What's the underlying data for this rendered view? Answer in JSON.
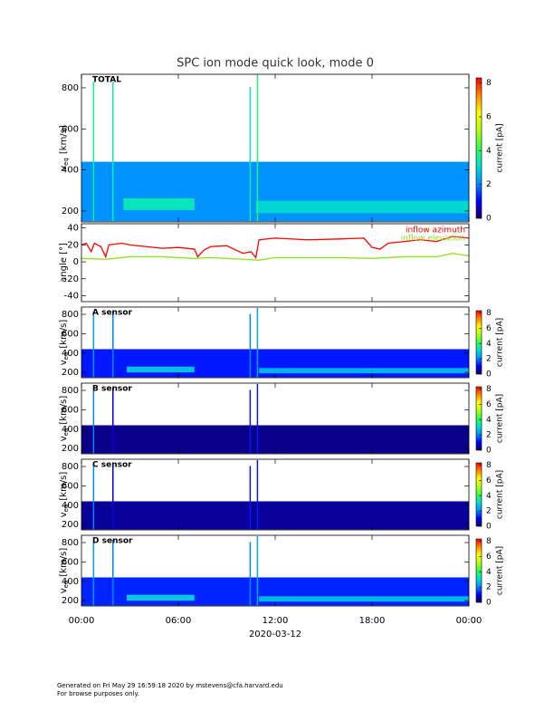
{
  "title": "SPC ion mode quick look, mode 0",
  "xlabel": "2020-03-12",
  "xlim": [
    0,
    24
  ],
  "xticks": [
    {
      "value": 0,
      "label": "00:00"
    },
    {
      "value": 6,
      "label": "06:00"
    },
    {
      "value": 12,
      "label": "12:00"
    },
    {
      "value": 18,
      "label": "18:00"
    },
    {
      "value": 24,
      "label": "00:00"
    }
  ],
  "footer": [
    "Generated on Fri May 29 16:59:18 2020 by mstevens@cfa.harvard.edu",
    "For browse purposes only."
  ],
  "chart_data": [
    {
      "type": "spectrogram",
      "label": "TOTAL",
      "ylabel": {
        "main": "v",
        "sub": "eq",
        "rest": "[km/s]"
      },
      "ylim": [
        147,
        866
      ],
      "yticks": [
        200,
        400,
        600,
        800
      ],
      "clim": [
        0,
        8.3
      ],
      "cticks": [
        0,
        2,
        4,
        6,
        8
      ],
      "clabel": "current [pA]",
      "colormap": [
        "#10005a",
        "#0000ff",
        "#0090ff",
        "#00e0d0",
        "#30ff50",
        "#b0ff10",
        "#ffff00",
        "#ff8800",
        "#ff0000"
      ],
      "background": {
        "v": [
          150,
          440
        ],
        "current": 2.1
      },
      "beams": [
        {
          "t": [
            2.6,
            7.0
          ],
          "v": [
            205,
            262
          ],
          "current": 3.3
        },
        {
          "t": [
            10.8,
            24
          ],
          "v": [
            190,
            250
          ],
          "current": 3.0
        }
      ],
      "spikes": [
        {
          "t": 0.75,
          "vmax": 830,
          "current": 3.6
        },
        {
          "t": 1.95,
          "vmax": 830,
          "current": 3.4
        },
        {
          "t": 10.45,
          "vmax": 805,
          "current": 3.4
        },
        {
          "t": 10.9,
          "vmax": 866,
          "current": 3.8
        }
      ]
    },
    {
      "type": "line",
      "ylabel": "angle [°]",
      "ylim": [
        -47,
        45
      ],
      "yticks": [
        -40,
        -20,
        0,
        20,
        40
      ],
      "series": [
        {
          "name": "inflow azimuth",
          "color": "#ff0000",
          "x": [
            0,
            0.3,
            0.6,
            0.8,
            1.2,
            1.5,
            1.7,
            2.5,
            3,
            4,
            5,
            6,
            7,
            7.2,
            7.6,
            8,
            9,
            10,
            10.5,
            10.8,
            11,
            12,
            14,
            16,
            17.5,
            18,
            18.5,
            19,
            20,
            21,
            22,
            23,
            24
          ],
          "values": [
            20,
            22,
            12,
            22,
            18,
            6,
            20,
            22,
            20,
            18,
            16,
            17,
            15,
            6,
            14,
            18,
            19,
            10,
            12,
            5,
            26,
            28,
            26,
            27,
            28,
            17,
            15,
            22,
            24,
            26,
            24,
            30,
            28
          ]
        },
        {
          "name": "inflow elevation",
          "color": "#90e020",
          "x": [
            0,
            1.5,
            3,
            5,
            7,
            8,
            10,
            11,
            12,
            16,
            18,
            20,
            22,
            23,
            24
          ],
          "values": [
            4,
            3,
            6,
            6,
            4,
            5,
            3,
            2,
            5,
            5,
            4,
            6,
            6,
            10,
            7
          ]
        }
      ]
    },
    {
      "type": "spectrogram",
      "label": "A sensor",
      "ylabel": {
        "main": "v",
        "sub": "eq",
        "rest": "[km/s]"
      },
      "ylim": [
        145,
        875
      ],
      "yticks": [
        200,
        400,
        600,
        800
      ],
      "clim": [
        0,
        8.3
      ],
      "cticks": [
        0,
        2,
        4,
        6,
        8
      ],
      "clabel": "current [pA]",
      "colormap": [
        "#10005a",
        "#0000ff",
        "#0090ff",
        "#00e0d0",
        "#30ff50",
        "#b0ff10",
        "#ffff00",
        "#ff8800",
        "#ff0000"
      ],
      "background": {
        "v": [
          150,
          440
        ],
        "current": 1.2
      },
      "beams": [
        {
          "t": [
            2.8,
            7.0
          ],
          "v": [
            200,
            260
          ],
          "current": 2.7
        },
        {
          "t": [
            11.0,
            24
          ],
          "v": [
            190,
            245
          ],
          "current": 2.5
        }
      ],
      "spikes": [
        {
          "t": 0.75,
          "vmax": 830,
          "current": 2.2
        },
        {
          "t": 1.95,
          "vmax": 830,
          "current": 2.0
        },
        {
          "t": 10.45,
          "vmax": 805,
          "current": 2.0
        },
        {
          "t": 10.9,
          "vmax": 866,
          "current": 2.4
        }
      ]
    },
    {
      "type": "spectrogram",
      "label": "B sensor",
      "ylabel": {
        "main": "v",
        "sub": "eq",
        "rest": "[km/s]"
      },
      "ylim": [
        145,
        875
      ],
      "yticks": [
        200,
        400,
        600,
        800
      ],
      "clim": [
        0,
        8.3
      ],
      "cticks": [
        0,
        2,
        4,
        6,
        8
      ],
      "clabel": "current [pA]",
      "colormap": [
        "#10005a",
        "#0000ff",
        "#0090ff",
        "#00e0d0",
        "#30ff50",
        "#b0ff10",
        "#ffff00",
        "#ff8800",
        "#ff0000"
      ],
      "background": {
        "v": [
          150,
          440
        ],
        "current": 0.3
      },
      "beams": [],
      "spikes": [
        {
          "t": 0.75,
          "vmax": 830,
          "current": 2.0
        },
        {
          "t": 1.95,
          "vmax": 830,
          "current": 0.8
        },
        {
          "t": 10.45,
          "vmax": 805,
          "current": 1.2
        },
        {
          "t": 10.9,
          "vmax": 866,
          "current": 1.2
        }
      ]
    },
    {
      "type": "spectrogram",
      "label": "C sensor",
      "ylabel": {
        "main": "v",
        "sub": "eq",
        "rest": "[km/s]"
      },
      "ylim": [
        145,
        875
      ],
      "yticks": [
        200,
        400,
        600,
        800
      ],
      "clim": [
        0,
        8.3
      ],
      "cticks": [
        0,
        2,
        4,
        6,
        8
      ],
      "clabel": "current [pA]",
      "colormap": [
        "#10005a",
        "#0000ff",
        "#0090ff",
        "#00e0d0",
        "#30ff50",
        "#b0ff10",
        "#ffff00",
        "#ff8800",
        "#ff0000"
      ],
      "background": {
        "v": [
          150,
          440
        ],
        "current": 0.4
      },
      "beams": [],
      "spikes": [
        {
          "t": 0.75,
          "vmax": 830,
          "current": 2.0
        },
        {
          "t": 1.95,
          "vmax": 830,
          "current": 0.8
        },
        {
          "t": 10.45,
          "vmax": 805,
          "current": 1.2
        },
        {
          "t": 10.9,
          "vmax": 866,
          "current": 1.2
        }
      ]
    },
    {
      "type": "spectrogram",
      "label": "D sensor",
      "ylabel": {
        "main": "v",
        "sub": "eq",
        "rest": "[km/s]"
      },
      "ylim": [
        145,
        875
      ],
      "yticks": [
        200,
        400,
        600,
        800
      ],
      "clim": [
        0,
        8.3
      ],
      "cticks": [
        0,
        2,
        4,
        6,
        8
      ],
      "clabel": "current [pA]",
      "colormap": [
        "#10005a",
        "#0000ff",
        "#0090ff",
        "#00e0d0",
        "#30ff50",
        "#b0ff10",
        "#ffff00",
        "#ff8800",
        "#ff0000"
      ],
      "background": {
        "v": [
          150,
          440
        ],
        "current": 1.3
      },
      "beams": [
        {
          "t": [
            2.8,
            7.0
          ],
          "v": [
            200,
            260
          ],
          "current": 2.8
        },
        {
          "t": [
            11.0,
            24
          ],
          "v": [
            190,
            245
          ],
          "current": 2.6
        }
      ],
      "spikes": [
        {
          "t": 0.75,
          "vmax": 830,
          "current": 2.2
        },
        {
          "t": 1.95,
          "vmax": 830,
          "current": 2.0
        },
        {
          "t": 10.45,
          "vmax": 805,
          "current": 2.0
        },
        {
          "t": 10.9,
          "vmax": 866,
          "current": 2.4
        }
      ]
    }
  ]
}
